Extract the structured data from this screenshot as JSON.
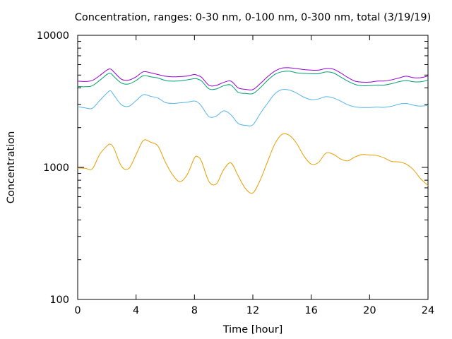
{
  "chart_data": {
    "type": "line",
    "title": "Concentration, ranges: 0-30 nm, 0-100 nm, 0-300 nm, total (3/19/19)",
    "xlabel": "Time [hour]",
    "ylabel": "Concentration",
    "xlim": [
      0,
      24
    ],
    "ylim": [
      100,
      10000
    ],
    "yscale": "log",
    "grid": false,
    "legend": "none",
    "xticks": [
      0,
      4,
      8,
      12,
      16,
      20,
      24
    ],
    "xtick_labels": [
      "0",
      "4",
      "8",
      "12",
      "16",
      "20",
      "24"
    ],
    "yticks": [
      100,
      1000,
      10000
    ],
    "ytick_labels": [
      "100",
      "1000",
      "10000"
    ],
    "x": [
      0,
      0.5,
      1,
      1.5,
      2,
      2.25,
      2.5,
      3,
      3.5,
      4,
      4.5,
      5,
      5.5,
      6,
      6.5,
      7,
      7.5,
      8,
      8.25,
      8.5,
      9,
      9.5,
      10,
      10.5,
      11,
      11.5,
      12,
      12.5,
      13,
      13.5,
      14,
      14.5,
      15,
      15.5,
      16,
      16.5,
      17,
      17.5,
      18,
      18.5,
      19,
      19.5,
      20,
      20.5,
      21,
      21.5,
      22,
      22.5,
      23,
      23.5,
      24
    ],
    "series": [
      {
        "color": "#e69f00",
        "values": [
          990,
          985,
          975,
          1250,
          1450,
          1500,
          1380,
          1020,
          980,
          1250,
          1600,
          1550,
          1450,
          1100,
          880,
          780,
          880,
          1180,
          1200,
          1100,
          780,
          750,
          960,
          1080,
          860,
          690,
          640,
          800,
          1100,
          1500,
          1780,
          1750,
          1520,
          1220,
          1060,
          1090,
          1280,
          1260,
          1160,
          1120,
          1200,
          1250,
          1240,
          1230,
          1180,
          1110,
          1100,
          1060,
          960,
          820,
          730
        ]
      },
      {
        "color": "#56b4e9",
        "values": [
          2880,
          2820,
          2800,
          3200,
          3650,
          3800,
          3500,
          2980,
          2900,
          3200,
          3550,
          3450,
          3350,
          3100,
          3050,
          3080,
          3120,
          3180,
          3100,
          2900,
          2420,
          2450,
          2680,
          2500,
          2150,
          2080,
          2100,
          2550,
          3050,
          3600,
          3880,
          3850,
          3650,
          3400,
          3260,
          3300,
          3430,
          3360,
          3180,
          2980,
          2870,
          2840,
          2840,
          2860,
          2850,
          2900,
          3010,
          3050,
          2960,
          2910,
          2950
        ]
      },
      {
        "color": "#009e73",
        "values": [
          4100,
          4080,
          4150,
          4550,
          5050,
          5150,
          4850,
          4350,
          4280,
          4550,
          4950,
          4850,
          4750,
          4550,
          4500,
          4520,
          4600,
          4700,
          4650,
          4500,
          3930,
          3930,
          4150,
          4200,
          3700,
          3630,
          3620,
          4000,
          4550,
          5050,
          5300,
          5350,
          5200,
          5150,
          5120,
          5120,
          5280,
          5200,
          4850,
          4500,
          4250,
          4150,
          4160,
          4200,
          4200,
          4300,
          4450,
          4550,
          4450,
          4450,
          4580
        ]
      },
      {
        "color": "#9400d3",
        "values": [
          4500,
          4470,
          4550,
          4950,
          5450,
          5550,
          5250,
          4650,
          4580,
          4850,
          5300,
          5200,
          5050,
          4900,
          4850,
          4870,
          4920,
          5050,
          4950,
          4800,
          4180,
          4180,
          4400,
          4500,
          4000,
          3900,
          3880,
          4300,
          4850,
          5350,
          5650,
          5680,
          5600,
          5500,
          5450,
          5450,
          5600,
          5550,
          5200,
          4800,
          4500,
          4420,
          4420,
          4500,
          4510,
          4600,
          4750,
          4900,
          4780,
          4780,
          4920
        ]
      }
    ]
  }
}
